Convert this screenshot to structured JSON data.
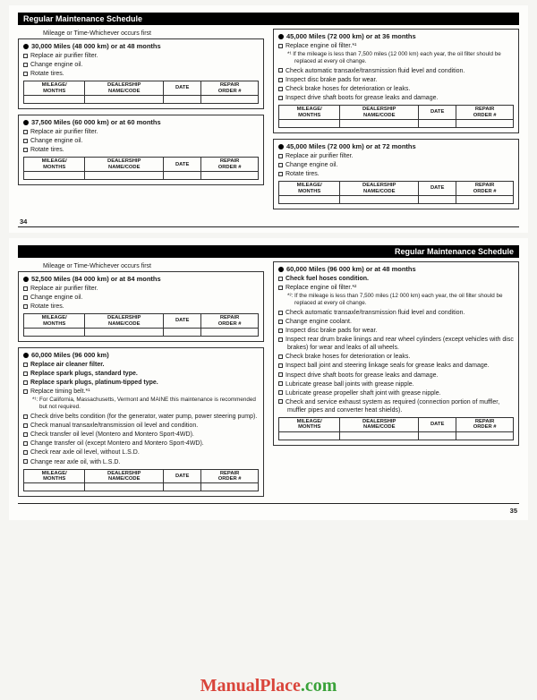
{
  "header_title": "Regular Maintenance Schedule",
  "caption": "Mileage or Time-Whichever occurs first",
  "table_headers": [
    "MILEAGE/\nMONTHS",
    "DEALERSHIP\nNAME/CODE",
    "DATE",
    "REPAIR\nORDER #"
  ],
  "page34": {
    "left": [
      {
        "title": "30,000 Miles (48 000 km) or at 48 months",
        "items": [
          {
            "t": "Replace air purifier filter."
          },
          {
            "t": "Change engine oil."
          },
          {
            "t": "Rotate tires."
          }
        ]
      },
      {
        "title": "37,500 Miles (60 000 km) or at 60 months",
        "items": [
          {
            "t": "Replace air purifier filter."
          },
          {
            "t": "Change engine oil."
          },
          {
            "t": "Rotate tires."
          }
        ]
      }
    ],
    "right": [
      {
        "title": "45,000 Miles (72 000 km) or at 36 months",
        "items": [
          {
            "t": "Replace engine oil filter.*¹",
            "note": "*¹ If the mileage is less than 7,500 miles (12 000 km) each year, the oil filter should be replaced at every oil change."
          },
          {
            "t": "Check automatic transaxle/transmission fluid level and condition."
          },
          {
            "t": "Inspect disc brake pads for wear."
          },
          {
            "t": "Check brake hoses for deterioration or leaks."
          },
          {
            "t": "Inspect drive shaft boots for grease leaks and damage."
          }
        ]
      },
      {
        "title": "45,000 Miles (72 000 km) or at 72 months",
        "items": [
          {
            "t": "Replace air purifier filter."
          },
          {
            "t": "Change engine oil."
          },
          {
            "t": "Rotate tires."
          }
        ]
      }
    ],
    "num": "34"
  },
  "page35": {
    "left": [
      {
        "title": "52,500 Miles (84 000 km) or at 84 months",
        "items": [
          {
            "t": "Replace air purifier filter."
          },
          {
            "t": "Change engine oil."
          },
          {
            "t": "Rotate tires."
          }
        ]
      },
      {
        "title": "60,000 Miles (96 000 km)",
        "items": [
          {
            "t": "Replace air cleaner filter.",
            "bold": true
          },
          {
            "t": "Replace spark plugs, standard type.",
            "bold": true
          },
          {
            "t": "Replace spark plugs, platinum-tipped type.",
            "bold": true
          },
          {
            "t": "Replace timing belt.*¹",
            "note": "*¹: For California, Massachusetts, Vermont and MAINE this maintenance is recommended but not required."
          },
          {
            "t": "Check drive belts condition (for the generator, water pump, power steering pump)."
          },
          {
            "t": "Check manual transaxle/transmission oil level and condition."
          },
          {
            "t": "Check transfer oil level (Montero and Montero Sport-4WD)."
          },
          {
            "t": "Change transfer oil (except Montero and Montero Sport-4WD)."
          },
          {
            "t": "Check rear axle oil level, without L.S.D."
          },
          {
            "t": "Change rear axle oil, with L.S.D."
          }
        ]
      }
    ],
    "right": [
      {
        "title": "60,000 Miles (96 000 km) or at 48 months",
        "items": [
          {
            "t": "Check fuel hoses condition.",
            "bold": true
          },
          {
            "t": "Replace engine oil filter.*²",
            "note": "*²: If the mileage is less than 7,500 miles (12 000 km) each year, the oil filter should be replaced at every oil change."
          },
          {
            "t": "Check automatic transaxle/transmission fluid level and condition."
          },
          {
            "t": "Change engine coolant."
          },
          {
            "t": "Inspect disc brake pads for wear."
          },
          {
            "t": "Inspect rear drum brake linings and rear wheel cylinders (except vehicles with disc brakes) for wear and leaks of all wheels."
          },
          {
            "t": "Check brake hoses for deterioration or leaks."
          },
          {
            "t": "Inspect ball joint and steering linkage seals for grease leaks and damage."
          },
          {
            "t": "Inspect drive shaft boots for grease leaks and damage."
          },
          {
            "t": "Lubricate grease ball joints with grease nipple."
          },
          {
            "t": "Lubricate grease propeller shaft joint with grease nipple."
          },
          {
            "t": "Check and service exhaust system as required (connection portion of muffler, muffler pipes and converter heat shields)."
          }
        ]
      }
    ],
    "num": "35"
  },
  "watermark": {
    "a": "ManualPlace",
    "b": ".com"
  }
}
